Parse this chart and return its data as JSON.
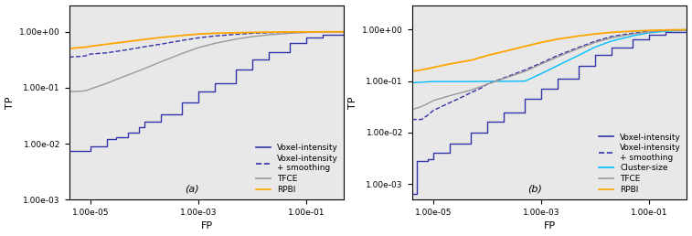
{
  "figsize": [
    7.57,
    2.58
  ],
  "dpi": 100,
  "panel_a": {
    "label": "(a)",
    "xlim": [
      4e-06,
      0.5
    ],
    "ylim": [
      0.001,
      3.0
    ],
    "yticks": [
      0.001,
      0.01,
      0.1,
      1.0
    ],
    "xticks": [
      1e-05,
      0.001,
      0.1
    ],
    "xlabel": "FP",
    "ylabel": "TP",
    "curves": [
      {
        "name": "Voxel-intensity",
        "color": "#3333aa",
        "linestyle": "solid",
        "linewidth": 1.0,
        "points_x": [
          4e-06,
          5e-06,
          6e-06,
          8e-06,
          1e-05,
          1.5e-05,
          2e-05,
          3e-05,
          5e-05,
          8e-05,
          0.0001,
          0.0002,
          0.0005,
          0.001,
          0.002,
          0.005,
          0.01,
          0.02,
          0.05,
          0.1,
          0.2,
          0.5
        ],
        "points_y": [
          0.0075,
          0.0075,
          0.0075,
          0.0075,
          0.009,
          0.009,
          0.012,
          0.013,
          0.016,
          0.02,
          0.025,
          0.033,
          0.055,
          0.085,
          0.12,
          0.21,
          0.32,
          0.44,
          0.63,
          0.79,
          0.89,
          0.99
        ]
      },
      {
        "name": "Voxel-intensity\n+ smoothing",
        "color": "#3333aa",
        "linestyle": "dashed",
        "linewidth": 1.0,
        "points_x": [
          4e-06,
          5e-06,
          6e-06,
          8e-06,
          1e-05,
          2e-05,
          5e-05,
          0.0001,
          0.0002,
          0.0005,
          0.001,
          0.002,
          0.005,
          0.01,
          0.02,
          0.05,
          0.1,
          0.2,
          0.5
        ],
        "points_y": [
          0.35,
          0.36,
          0.36,
          0.37,
          0.4,
          0.42,
          0.48,
          0.54,
          0.6,
          0.7,
          0.78,
          0.84,
          0.9,
          0.94,
          0.96,
          0.98,
          0.99,
          0.995,
          1.0
        ]
      },
      {
        "name": "TFCE",
        "color": "#999999",
        "linestyle": "solid",
        "linewidth": 1.0,
        "points_x": [
          4e-06,
          6e-06,
          8e-06,
          1e-05,
          2e-05,
          5e-05,
          0.0001,
          0.0002,
          0.0005,
          0.001,
          0.002,
          0.005,
          0.01,
          0.02,
          0.05,
          0.1,
          0.2,
          0.5
        ],
        "points_y": [
          0.085,
          0.086,
          0.088,
          0.095,
          0.12,
          0.17,
          0.22,
          0.29,
          0.41,
          0.52,
          0.62,
          0.74,
          0.82,
          0.88,
          0.94,
          0.97,
          0.99,
          1.0
        ]
      },
      {
        "name": "RPBI",
        "color": "#FFA500",
        "linestyle": "solid",
        "linewidth": 1.3,
        "points_x": [
          4e-06,
          6e-06,
          8e-06,
          1e-05,
          2e-05,
          5e-05,
          0.0001,
          0.0002,
          0.0005,
          0.001,
          0.002,
          0.005,
          0.01,
          0.02,
          0.05,
          0.1,
          0.2,
          0.5
        ],
        "points_y": [
          0.5,
          0.52,
          0.53,
          0.55,
          0.6,
          0.67,
          0.73,
          0.79,
          0.86,
          0.91,
          0.94,
          0.96,
          0.975,
          0.985,
          0.993,
          0.997,
          0.999,
          1.0
        ]
      }
    ],
    "legend_entries": [
      {
        "name": "Voxel-intensity",
        "color": "#3333aa",
        "linestyle": "solid"
      },
      {
        "name": "Voxel-intensity\n+ smoothing",
        "color": "#3333aa",
        "linestyle": "dashed"
      },
      {
        "name": "TFCE",
        "color": "#999999",
        "linestyle": "solid"
      },
      {
        "name": "RPBI",
        "color": "#FFA500",
        "linestyle": "solid"
      }
    ]
  },
  "panel_b": {
    "label": "(b)",
    "xlim": [
      4e-06,
      0.5
    ],
    "ylim": [
      0.0005,
      3.0
    ],
    "yticks": [
      0.001,
      0.01,
      0.1,
      1.0
    ],
    "xticks": [
      1e-05,
      0.001,
      0.1
    ],
    "xlabel": "FP",
    "ylabel": "TP",
    "curves": [
      {
        "name": "Voxel-intensity",
        "color": "#3333aa",
        "linestyle": "solid",
        "linewidth": 1.0,
        "points_x": [
          4e-06,
          5e-06,
          8e-06,
          1e-05,
          2e-05,
          5e-05,
          0.0001,
          0.0002,
          0.0005,
          0.001,
          0.002,
          0.005,
          0.01,
          0.02,
          0.05,
          0.1,
          0.2,
          0.5
        ],
        "points_y": [
          0.00065,
          0.0028,
          0.003,
          0.004,
          0.006,
          0.01,
          0.016,
          0.025,
          0.045,
          0.07,
          0.11,
          0.2,
          0.32,
          0.45,
          0.65,
          0.8,
          0.9,
          0.98
        ]
      },
      {
        "name": "Voxel-intensity\n+ smoothing",
        "color": "#3333aa",
        "linestyle": "dashed",
        "linewidth": 1.0,
        "points_x": [
          4e-06,
          5e-06,
          6e-06,
          8e-06,
          1e-05,
          1.5e-05,
          2e-05,
          3e-05,
          5e-05,
          8e-05,
          0.0001,
          0.0002,
          0.0005,
          0.001,
          0.002,
          0.005,
          0.01,
          0.02,
          0.05,
          0.1,
          0.2,
          0.5
        ],
        "points_y": [
          0.018,
          0.018,
          0.018,
          0.022,
          0.027,
          0.033,
          0.038,
          0.046,
          0.06,
          0.075,
          0.088,
          0.115,
          0.165,
          0.225,
          0.315,
          0.455,
          0.595,
          0.735,
          0.855,
          0.93,
          0.97,
          0.995
        ]
      },
      {
        "name": "Cluster-size",
        "color": "#00BFFF",
        "linestyle": "solid",
        "linewidth": 1.0,
        "points_x": [
          4e-06,
          6e-06,
          8e-06,
          1e-05,
          2e-05,
          5e-05,
          0.0001,
          0.0002,
          0.0005,
          0.001,
          0.002,
          0.005,
          0.01,
          0.02,
          0.05,
          0.1,
          0.2,
          0.5
        ],
        "points_y": [
          0.093,
          0.095,
          0.097,
          0.098,
          0.098,
          0.098,
          0.099,
          0.099,
          0.1,
          0.14,
          0.2,
          0.32,
          0.46,
          0.6,
          0.76,
          0.87,
          0.93,
          0.98
        ]
      },
      {
        "name": "TFCE",
        "color": "#999999",
        "linestyle": "solid",
        "linewidth": 1.0,
        "points_x": [
          4e-06,
          6e-06,
          8e-06,
          1e-05,
          2e-05,
          5e-05,
          0.0001,
          0.0002,
          0.0005,
          0.001,
          0.002,
          0.005,
          0.01,
          0.02,
          0.05,
          0.1,
          0.2,
          0.5
        ],
        "points_y": [
          0.028,
          0.032,
          0.037,
          0.042,
          0.052,
          0.067,
          0.087,
          0.112,
          0.155,
          0.215,
          0.295,
          0.435,
          0.565,
          0.695,
          0.825,
          0.905,
          0.955,
          0.99
        ]
      },
      {
        "name": "RPBI",
        "color": "#FFA500",
        "linestyle": "solid",
        "linewidth": 1.3,
        "points_x": [
          4e-06,
          6e-06,
          8e-06,
          1e-05,
          2e-05,
          5e-05,
          0.0001,
          0.0002,
          0.0005,
          0.001,
          0.002,
          0.005,
          0.01,
          0.02,
          0.05,
          0.1,
          0.2,
          0.5
        ],
        "points_y": [
          0.155,
          0.165,
          0.175,
          0.185,
          0.215,
          0.255,
          0.315,
          0.375,
          0.475,
          0.565,
          0.655,
          0.755,
          0.825,
          0.885,
          0.935,
          0.967,
          0.985,
          0.999
        ]
      }
    ],
    "legend_entries": [
      {
        "name": "Voxel-intensity",
        "color": "#3333aa",
        "linestyle": "solid"
      },
      {
        "name": "Voxel-intensity\n+ smoothing",
        "color": "#3333aa",
        "linestyle": "dashed"
      },
      {
        "name": "Cluster-size",
        "color": "#00BFFF",
        "linestyle": "solid"
      },
      {
        "name": "TFCE",
        "color": "#999999",
        "linestyle": "solid"
      },
      {
        "name": "RPBI",
        "color": "#FFA500",
        "linestyle": "solid"
      }
    ]
  },
  "bg_color": "#e8e8e8",
  "tick_fontsize": 6.5,
  "label_fontsize": 8,
  "legend_fontsize": 6.5
}
